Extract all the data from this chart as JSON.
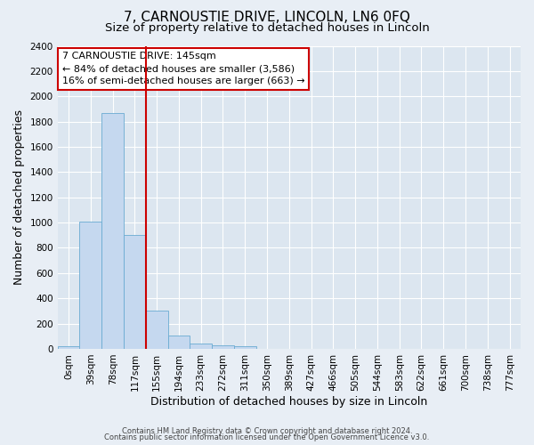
{
  "title": "7, CARNOUSTIE DRIVE, LINCOLN, LN6 0FQ",
  "subtitle": "Size of property relative to detached houses in Lincoln",
  "xlabel": "Distribution of detached houses by size in Lincoln",
  "ylabel": "Number of detached properties",
  "bar_labels": [
    "0sqm",
    "39sqm",
    "78sqm",
    "117sqm",
    "155sqm",
    "194sqm",
    "233sqm",
    "272sqm",
    "311sqm",
    "350sqm",
    "389sqm",
    "427sqm",
    "466sqm",
    "505sqm",
    "544sqm",
    "583sqm",
    "622sqm",
    "661sqm",
    "700sqm",
    "738sqm",
    "777sqm"
  ],
  "bar_values": [
    20,
    1005,
    1870,
    900,
    305,
    105,
    45,
    25,
    20,
    0,
    0,
    0,
    0,
    0,
    0,
    0,
    0,
    0,
    0,
    0,
    0
  ],
  "bar_color": "#c5d8ef",
  "bar_edge_color": "#6aabd2",
  "vline_color": "#cc0000",
  "ylim": [
    0,
    2400
  ],
  "yticks": [
    0,
    200,
    400,
    600,
    800,
    1000,
    1200,
    1400,
    1600,
    1800,
    2000,
    2200,
    2400
  ],
  "annotation_title": "7 CARNOUSTIE DRIVE: 145sqm",
  "annotation_line1": "← 84% of detached houses are smaller (3,586)",
  "annotation_line2": "16% of semi-detached houses are larger (663) →",
  "annotation_box_facecolor": "#ffffff",
  "annotation_box_edgecolor": "#cc0000",
  "footer1": "Contains HM Land Registry data © Crown copyright and database right 2024.",
  "footer2": "Contains public sector information licensed under the Open Government Licence v3.0.",
  "fig_facecolor": "#e8eef5",
  "axes_facecolor": "#dce6f0",
  "grid_color": "#ffffff",
  "title_fontsize": 11,
  "subtitle_fontsize": 9.5,
  "xlabel_fontsize": 9,
  "ylabel_fontsize": 9,
  "tick_fontsize": 7.5,
  "annotation_fontsize": 8,
  "footer_fontsize": 6
}
